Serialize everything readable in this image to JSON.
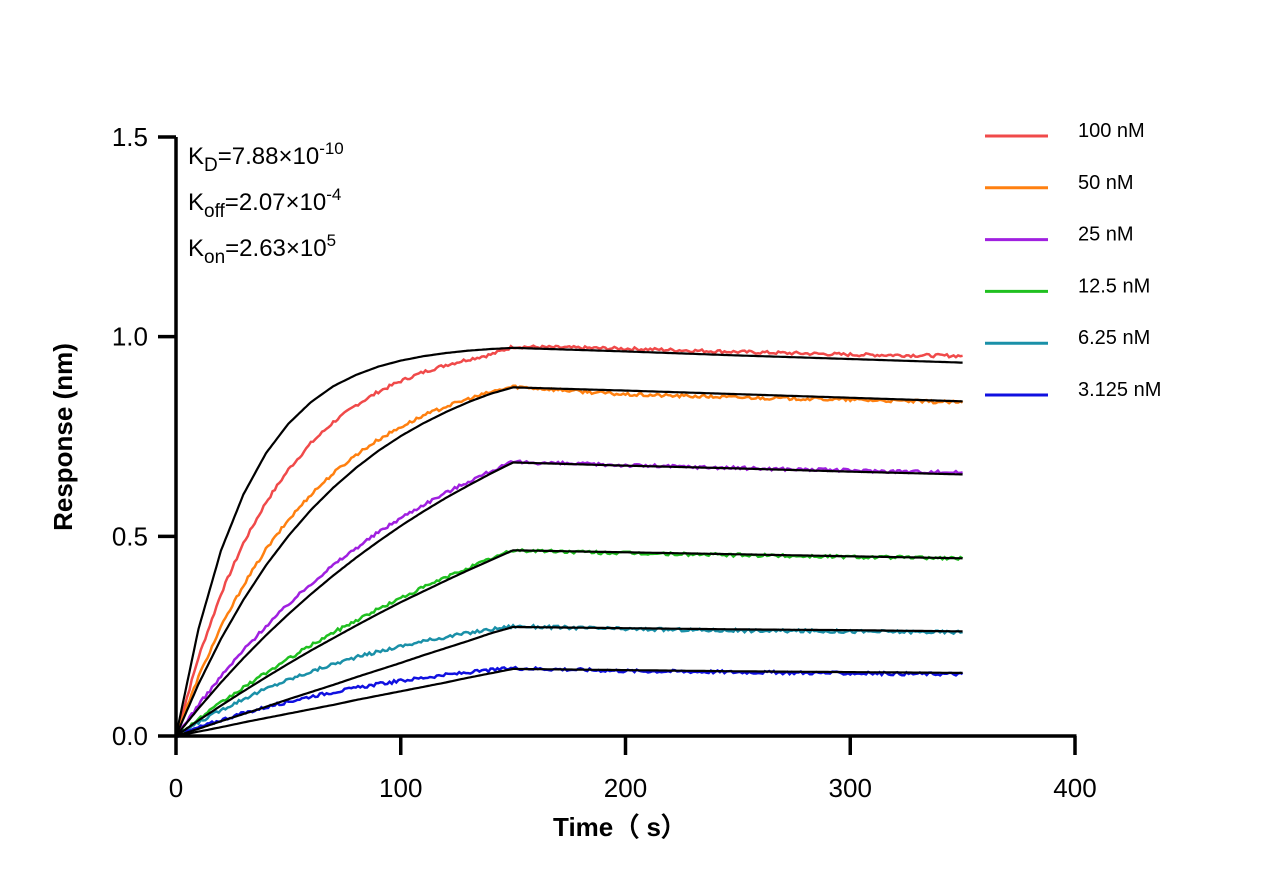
{
  "chart_data": {
    "type": "line",
    "xlabel": "Time（ s）",
    "ylabel": "Response (nm)",
    "xlim": [
      0,
      400
    ],
    "ylim": [
      0,
      1.5
    ],
    "xticks": [
      "0",
      "100",
      "200",
      "300",
      "400"
    ],
    "yticks": [
      "0.0",
      "0.5",
      "1.0",
      "1.5"
    ],
    "grid": false,
    "legend_position": "top-right",
    "annotations": [
      {
        "symbol": "K",
        "sub": "D",
        "value": "=7.88×10",
        "exp": "-10"
      },
      {
        "symbol": "K",
        "sub": "off",
        "value": "=2.07×10",
        "exp": "-4"
      },
      {
        "symbol": "K",
        "sub": "on",
        "value": "=2.63×10",
        "exp": "5"
      }
    ],
    "fit_color": "#000000",
    "x": [
      0,
      10,
      20,
      30,
      40,
      50,
      60,
      70,
      80,
      90,
      100,
      110,
      120,
      130,
      140,
      150,
      200,
      250,
      300,
      350
    ],
    "series": [
      {
        "name": "100 nM",
        "color": "#f04a4a",
        "values": [
          0,
          0.197,
          0.356,
          0.483,
          0.585,
          0.667,
          0.733,
          0.786,
          0.828,
          0.862,
          0.889,
          0.911,
          0.929,
          0.943,
          0.955,
          0.975,
          0.97,
          0.962,
          0.955,
          0.952
        ],
        "fit": [
          0,
          0.268,
          0.464,
          0.605,
          0.708,
          0.782,
          0.836,
          0.876,
          0.904,
          0.925,
          0.94,
          0.951,
          0.959,
          0.965,
          0.969,
          0.972,
          0.963,
          0.953,
          0.944,
          0.935
        ]
      },
      {
        "name": "50 nM",
        "color": "#ff8010",
        "values": [
          0,
          0.148,
          0.273,
          0.378,
          0.467,
          0.541,
          0.605,
          0.658,
          0.704,
          0.742,
          0.774,
          0.802,
          0.825,
          0.844,
          0.861,
          0.875,
          0.855,
          0.848,
          0.842,
          0.835
        ],
        "fit": [
          0,
          0.13,
          0.243,
          0.341,
          0.427,
          0.501,
          0.566,
          0.622,
          0.671,
          0.714,
          0.751,
          0.783,
          0.811,
          0.836,
          0.857,
          0.873,
          0.865,
          0.856,
          0.847,
          0.838
        ]
      },
      {
        "name": "25 nM",
        "color": "#a020e0",
        "values": [
          0,
          0.078,
          0.149,
          0.215,
          0.275,
          0.33,
          0.381,
          0.428,
          0.47,
          0.51,
          0.546,
          0.579,
          0.609,
          0.637,
          0.663,
          0.686,
          0.678,
          0.671,
          0.665,
          0.66
        ],
        "fit": [
          0,
          0.069,
          0.134,
          0.195,
          0.252,
          0.305,
          0.355,
          0.402,
          0.446,
          0.487,
          0.526,
          0.562,
          0.596,
          0.627,
          0.657,
          0.685,
          0.677,
          0.67,
          0.662,
          0.655
        ]
      },
      {
        "name": "12.5 nM",
        "color": "#20c020",
        "values": [
          0,
          0.042,
          0.083,
          0.121,
          0.158,
          0.193,
          0.227,
          0.259,
          0.289,
          0.318,
          0.345,
          0.372,
          0.397,
          0.421,
          0.444,
          0.465,
          0.458,
          0.453,
          0.449,
          0.445
        ],
        "fit": [
          0,
          0.039,
          0.076,
          0.112,
          0.147,
          0.181,
          0.214,
          0.245,
          0.276,
          0.306,
          0.335,
          0.362,
          0.389,
          0.415,
          0.44,
          0.465,
          0.46,
          0.455,
          0.45,
          0.445
        ]
      },
      {
        "name": "6.25 nM",
        "color": "#1a90a8",
        "values": [
          0,
          0.034,
          0.065,
          0.093,
          0.118,
          0.141,
          0.161,
          0.18,
          0.197,
          0.211,
          0.225,
          0.237,
          0.248,
          0.258,
          0.267,
          0.275,
          0.268,
          0.264,
          0.262,
          0.26
        ],
        "fit": [
          0,
          0.018,
          0.037,
          0.055,
          0.073,
          0.092,
          0.11,
          0.128,
          0.147,
          0.165,
          0.183,
          0.202,
          0.22,
          0.238,
          0.257,
          0.273,
          0.27,
          0.267,
          0.265,
          0.262
        ]
      },
      {
        "name": "3.125 nM",
        "color": "#1010e0",
        "values": [
          0,
          0.021,
          0.04,
          0.057,
          0.072,
          0.086,
          0.099,
          0.11,
          0.12,
          0.13,
          0.138,
          0.146,
          0.153,
          0.159,
          0.165,
          0.17,
          0.163,
          0.16,
          0.157,
          0.155
        ],
        "fit": [
          0,
          0.011,
          0.022,
          0.034,
          0.045,
          0.056,
          0.067,
          0.078,
          0.09,
          0.101,
          0.112,
          0.123,
          0.134,
          0.146,
          0.157,
          0.168,
          0.165,
          0.162,
          0.16,
          0.158
        ]
      }
    ]
  }
}
